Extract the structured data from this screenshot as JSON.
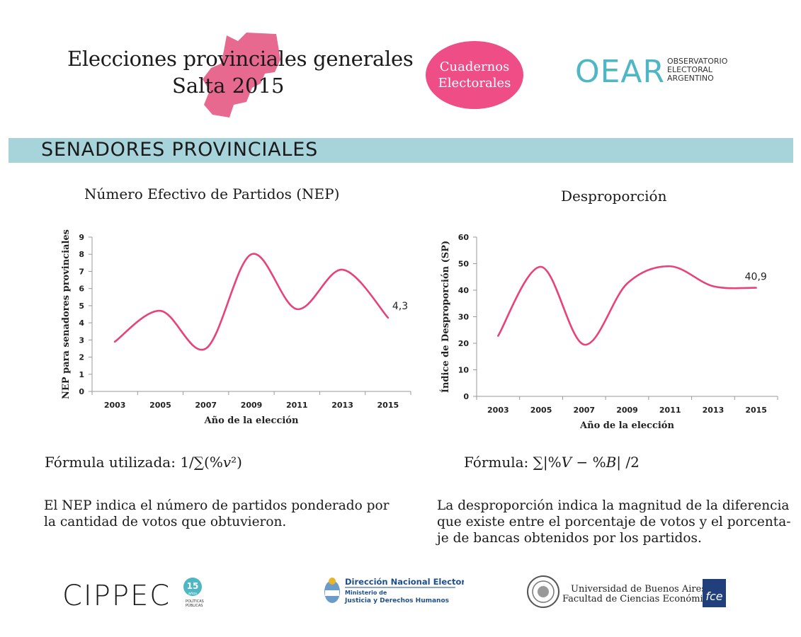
{
  "header": {
    "title_line1": "Elecciones provinciales generales",
    "title_line2": "Salta 2015",
    "badge_line1": "Cuadernos",
    "badge_line2": "Electorales",
    "oear_logo_text": "OEAR",
    "oear_logo_sub": [
      "OBSERVATORIO",
      "ELECTORAL",
      "ARGENTINO"
    ]
  },
  "section": {
    "title": "SENADORES PROVINCIALES"
  },
  "colors": {
    "accent": "#e8417c",
    "badge": "#ee4d86",
    "bar": "#a7d3db",
    "map": "#e8698f",
    "oear": "#4fb7c4"
  },
  "chart_data": [
    {
      "type": "line",
      "title": "Número Efectivo de Partidos (NEP)",
      "categories": [
        "2003",
        "2005",
        "2007",
        "2009",
        "2011",
        "2013",
        "2015"
      ],
      "series": [
        {
          "name": "NEP",
          "values": [
            2.9,
            4.7,
            2.5,
            8.0,
            4.8,
            7.1,
            4.3
          ]
        }
      ],
      "xlabel": "Año de la elección",
      "ylabel": "NEP para senadores provinciales",
      "ylim": [
        0,
        9
      ],
      "yticks": [
        "0",
        "1",
        "2",
        "3",
        "4",
        "5",
        "6",
        "7",
        "8",
        "9"
      ],
      "end_label": "4,3"
    },
    {
      "type": "line",
      "title": "Desproporción",
      "categories": [
        "2003",
        "2005",
        "2007",
        "2009",
        "2011",
        "2013",
        "2015"
      ],
      "series": [
        {
          "name": "SP",
          "values": [
            22.8,
            48.8,
            19.5,
            42.5,
            49.0,
            41.5,
            40.9
          ]
        }
      ],
      "xlabel": "Año de la elección",
      "ylabel": "Índice de Desproporción (SP)",
      "ylim": [
        0,
        60
      ],
      "yticks": [
        "0",
        "10",
        "20",
        "30",
        "40",
        "50",
        "60"
      ],
      "end_label": "40,9"
    }
  ],
  "formulas": {
    "nep_label": "Fórmula utilizada: ",
    "nep_expr": "1/∑(%𝑣²)",
    "desp_label": "Fórmula: ",
    "desp_expr": "∑|%𝑉 − %𝐵| /2"
  },
  "descriptions": {
    "nep_line1": "El NEP indica el número de partidos ponderado por",
    "nep_line2": "la cantidad de votos que obtuvieron.",
    "desp_line1": "La desproporción indica la magnitud de la diferencia",
    "desp_line2": "que existe entre el porcentaje de votos y el porcenta-",
    "desp_line3": "je de bancas obtenidos por los partidos."
  },
  "footer": {
    "cippec": "CIPPEC",
    "cippec_badge": "15",
    "cippec_badge_sub": "años",
    "cippec_tag1": "POLÍTICAS",
    "cippec_tag2": "PÚBLICAS",
    "dne_title": "Dirección Nacional Electoral",
    "dne_sub1": "Ministerio de",
    "dne_sub2": "Justicia y Derechos Humanos",
    "uba_line1": "Universidad de Buenos Aires",
    "uba_line2": "Facultad de Ciencias Económicas",
    "uba_badge": "fce"
  }
}
